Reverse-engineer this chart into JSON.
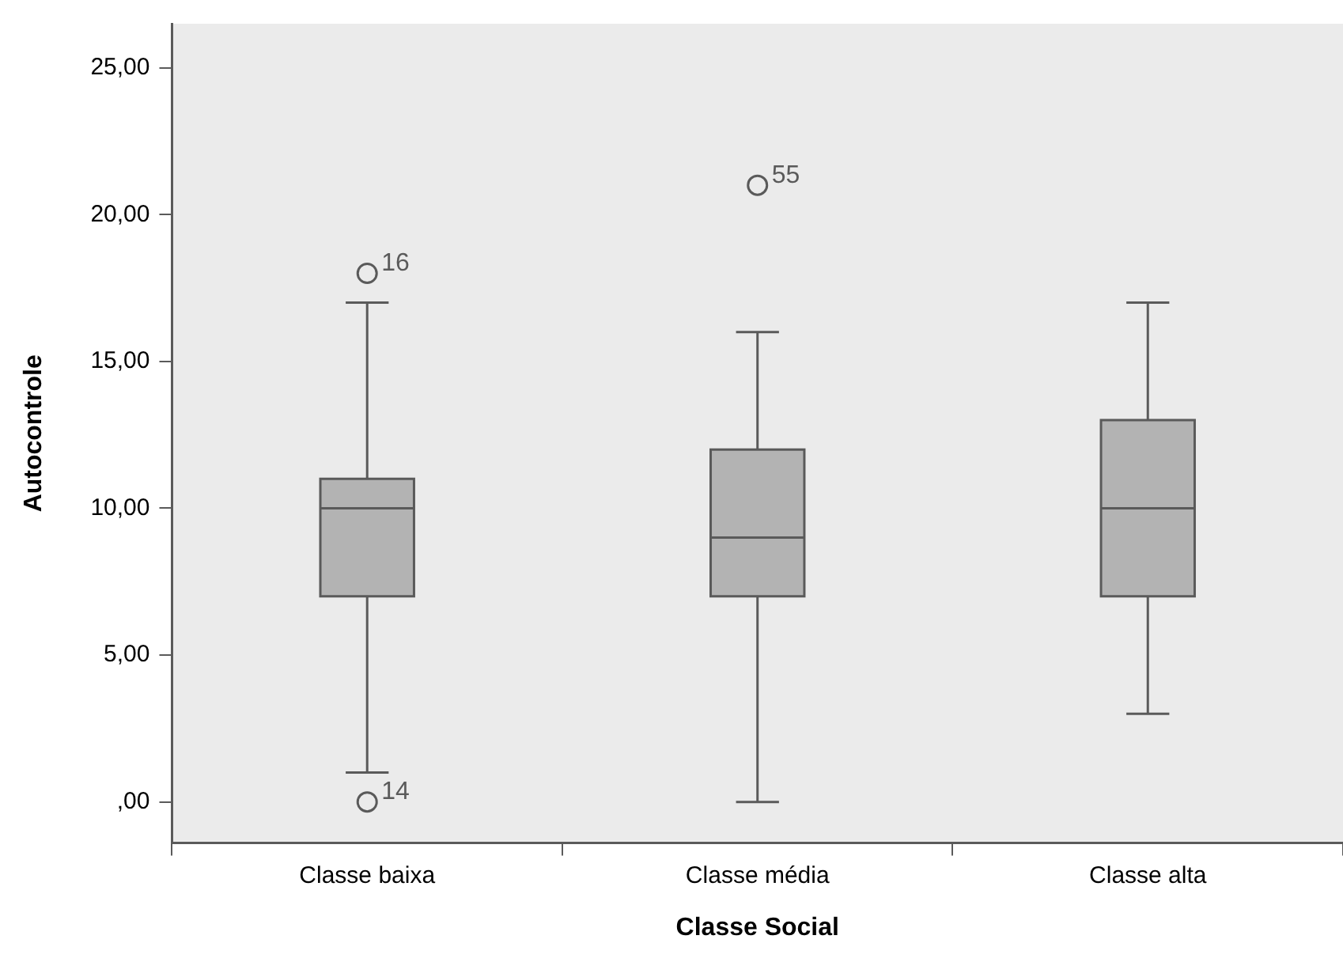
{
  "chart_data": {
    "type": "box",
    "xlabel": "Classe Social",
    "ylabel": "Autocontrole",
    "categories": [
      "Classe baixa",
      "Classe média",
      "Classe alta"
    ],
    "series": [
      {
        "color": "#b3b3b3",
        "boxes": [
          {
            "low": 1,
            "q1": 7,
            "median": 10,
            "q3": 11,
            "high": 17,
            "outliers": [
              0,
              18
            ]
          },
          {
            "low": 0,
            "q1": 7,
            "median": 9,
            "q3": 12,
            "high": 16,
            "outliers": [
              21
            ]
          },
          {
            "low": 3,
            "q1": 7,
            "median": 10,
            "q3": 13,
            "high": 17
          }
        ]
      }
    ],
    "ylim": [
      -1.4,
      26.5
    ],
    "yticks": [
      {
        "value": 0,
        "label": ",00"
      },
      {
        "value": 5,
        "label": "5,00"
      },
      {
        "value": 10,
        "label": "10,00"
      },
      {
        "value": 15,
        "label": "15,00"
      },
      {
        "value": 20,
        "label": "20,00"
      },
      {
        "value": 25,
        "label": "25,00"
      }
    ],
    "annotations": [
      "14",
      "16",
      "55"
    ],
    "grid": false,
    "legend": false
  }
}
